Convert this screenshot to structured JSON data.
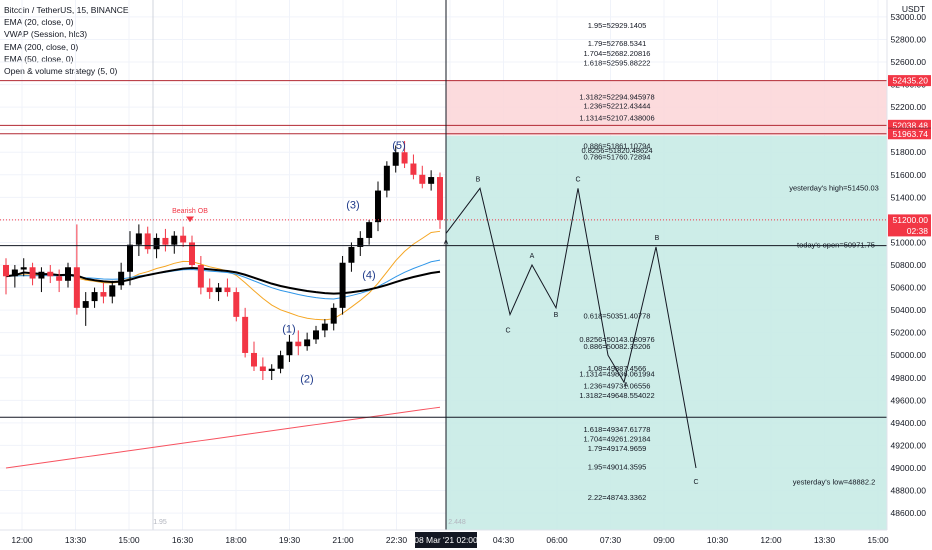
{
  "chart_data": {
    "type": "candlestick",
    "symbol": "Bitcoin / TetherUS, 15, BINANCE",
    "indicators": [
      "EMA (20, close, 0)",
      "VWAP (Session, hlc3)",
      "EMA (200, close, 0)",
      "EMA (50, close, 0)",
      "Open & volume strategy (5, 0)"
    ],
    "y_unit": "USDT",
    "ylim": [
      48450,
      53150
    ],
    "y_ticks": [
      48600,
      48800,
      49000,
      49200,
      49400,
      49600,
      49800,
      50000,
      50200,
      50400,
      50600,
      50800,
      51000,
      51200,
      51400,
      51600,
      51800,
      52000,
      52200,
      52400,
      52600,
      52800,
      53000
    ],
    "x_ticks": [
      "12:00",
      "13:30",
      "15:00",
      "16:30",
      "18:00",
      "19:30",
      "21:00",
      "22:30",
      "8",
      "04:30",
      "06:00",
      "07:30",
      "09:00",
      "10:30",
      "12:00",
      "13:30",
      "15:00"
    ],
    "time_label": "08 Mar '21  02:00",
    "price_tags": [
      {
        "value": 52435.2,
        "label": "52435.20",
        "color": "#f23645"
      },
      {
        "value": 52038.48,
        "label": "52038.48",
        "color": "#f23645"
      },
      {
        "value": 51967.64,
        "label": "51967.64",
        "color": "#131722"
      },
      {
        "value": 51963.74,
        "label": "51963.74",
        "color": "#f23645"
      },
      {
        "value": 51200.0,
        "label": "51200.00",
        "sub": "02:38",
        "color": "#f23645"
      }
    ],
    "candles": [
      [
        50800,
        50860,
        50540,
        50700
      ],
      [
        50700,
        50800,
        50600,
        50760
      ],
      [
        50760,
        50860,
        50700,
        50780
      ],
      [
        50780,
        50820,
        50620,
        50680
      ],
      [
        50680,
        50780,
        50560,
        50740
      ],
      [
        50740,
        50800,
        50640,
        50700
      ],
      [
        50700,
        50760,
        50560,
        50660
      ],
      [
        50660,
        50820,
        50600,
        50780
      ],
      [
        50780,
        51160,
        50360,
        50420
      ],
      [
        50420,
        50560,
        50260,
        50480
      ],
      [
        50480,
        50600,
        50420,
        50560
      ],
      [
        50560,
        50640,
        50460,
        50520
      ],
      [
        50520,
        50660,
        50460,
        50620
      ],
      [
        50620,
        50820,
        50580,
        50740
      ],
      [
        50740,
        51100,
        50620,
        50980
      ],
      [
        50980,
        51160,
        50880,
        51080
      ],
      [
        51080,
        51140,
        50900,
        50940
      ],
      [
        50940,
        51080,
        50860,
        51040
      ],
      [
        51040,
        51120,
        50920,
        50980
      ],
      [
        50980,
        51100,
        50900,
        51060
      ],
      [
        51060,
        51140,
        50960,
        51000
      ],
      [
        51000,
        51060,
        50780,
        50800
      ],
      [
        50800,
        50880,
        50540,
        50600
      ],
      [
        50600,
        50680,
        50500,
        50560
      ],
      [
        50560,
        50640,
        50480,
        50600
      ],
      [
        50600,
        50680,
        50520,
        50560
      ],
      [
        50560,
        50600,
        50300,
        50340
      ],
      [
        50340,
        50420,
        49980,
        50020
      ],
      [
        50020,
        50120,
        49860,
        49900
      ],
      [
        49900,
        49980,
        49780,
        49860
      ],
      [
        49860,
        49920,
        49780,
        49880
      ],
      [
        49880,
        50040,
        49840,
        50000
      ],
      [
        50000,
        50180,
        49940,
        50120
      ],
      [
        50120,
        50220,
        50000,
        50080
      ],
      [
        50080,
        50200,
        50040,
        50140
      ],
      [
        50140,
        50260,
        50100,
        50220
      ],
      [
        50220,
        50320,
        50160,
        50280
      ],
      [
        50280,
        50460,
        50220,
        50420
      ],
      [
        50420,
        50880,
        50360,
        50820
      ],
      [
        50820,
        51000,
        50740,
        50960
      ],
      [
        50960,
        51100,
        50880,
        51040
      ],
      [
        51040,
        51200,
        50980,
        51180
      ],
      [
        51180,
        51540,
        51100,
        51460
      ],
      [
        51460,
        51720,
        51400,
        51680
      ],
      [
        51680,
        51860,
        51620,
        51800
      ],
      [
        51800,
        51900,
        51660,
        51700
      ],
      [
        51700,
        51780,
        51560,
        51600
      ],
      [
        51600,
        51680,
        51480,
        51520
      ],
      [
        51520,
        51640,
        51460,
        51580
      ],
      [
        51580,
        51620,
        51120,
        51200
      ]
    ],
    "fib_levels": [
      {
        "label": "1.95=52929.1405",
        "value": 52929.1405
      },
      {
        "label": "1.79=52768.5341",
        "value": 52768.5341
      },
      {
        "label": "1.704=52682.20816",
        "value": 52682.20816
      },
      {
        "label": "1.618=52595.88222",
        "value": 52595.88222
      },
      {
        "label": "1.3182=52294.945978",
        "value": 52294.945978
      },
      {
        "label": "1.236=52212.43444",
        "value": 52212.43444
      },
      {
        "label": "1.1314=52107.438006",
        "value": 52107.438006
      },
      {
        "label": "0.886=51861.10794",
        "value": 51861.10794
      },
      {
        "label": "0.8256=51820.48624",
        "value": 51820.48624
      },
      {
        "label": "0.786=51760.72894",
        "value": 51760.72894
      },
      {
        "label": "0.618=50351.40778",
        "value": 50351.40778
      },
      {
        "label": "0.8256=50143.080976",
        "value": 50143.080976
      },
      {
        "label": "0.886=50082.35206",
        "value": 50082.35206
      },
      {
        "label": "1.08=49887.4566",
        "value": 49887.4566
      },
      {
        "label": "1.1314=49836.061994",
        "value": 49836.061994
      },
      {
        "label": "1.236=49731.06556",
        "value": 49731.06556
      },
      {
        "label": "1.3182=49648.554022",
        "value": 49648.554022
      },
      {
        "label": "1.618=49347.61778",
        "value": 49347.61778
      },
      {
        "label": "1.704=49261.29184",
        "value": 49261.29184
      },
      {
        "label": "1.79=49174.9659",
        "value": 49174.9659
      },
      {
        "label": "1.95=49014.3595",
        "value": 49014.3595
      },
      {
        "label": "2.22=48743.3362",
        "value": 48743.3362
      }
    ],
    "ref_lines": [
      {
        "label": "yesterday's high=51450.03",
        "value": 51450.03
      },
      {
        "label": "today's open=50971.75",
        "value": 50971.75
      },
      {
        "label": "yesterday's low=48882.2",
        "value": 48882.2
      }
    ],
    "wave_labels": [
      "(1)",
      "(2)",
      "(3)",
      "(4)",
      "(5)"
    ],
    "pattern_labels": [
      "A",
      "B",
      "C",
      "A",
      "B",
      "C",
      "A",
      "B",
      "C"
    ],
    "annotations": {
      "bearish_ob": "Bearish OB"
    },
    "faint_labels": [
      "1.95",
      "2.448"
    ]
  }
}
